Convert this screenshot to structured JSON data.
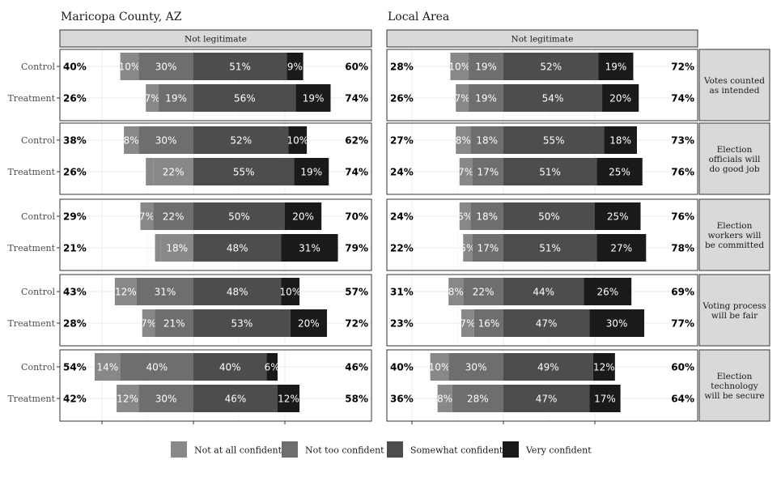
{
  "chart_data": {
    "type": "bar",
    "orientation": "horizontal-diverging",
    "stacked": true,
    "strip_label": "Not legitimate",
    "panels": [
      {
        "title": "Maricopa County, AZ"
      },
      {
        "title": "Local Area"
      }
    ],
    "groups": [
      "Control",
      "Treatment"
    ],
    "legend": [
      {
        "label": "Not at all confident",
        "color": "#888888"
      },
      {
        "label": "Not too confident",
        "color": "#6e6e6e"
      },
      {
        "label": "Somewhat confident",
        "color": "#4d4d4d"
      },
      {
        "label": "Very confident",
        "color": "#1a1a1a"
      }
    ],
    "legend_position": "bottom",
    "xlim": [
      -60,
      60
    ],
    "grid": true,
    "facets": [
      {
        "label": "Votes counted as intended",
        "label_lines": [
          "Votes counted",
          "as intended"
        ],
        "panels": [
          [
            {
              "group": "Control",
              "left": "40%",
              "right": "60%",
              "segments": [
                {
                  "value": 0,
                  "label": ""
                },
                {
                  "value": 10,
                  "label": "10%"
                },
                {
                  "value": 30,
                  "label": "30%"
                },
                {
                  "value": 51,
                  "label": "51%"
                },
                {
                  "value": 9,
                  "label": "9%"
                }
              ]
            },
            {
              "group": "Treatment",
              "left": "26%",
              "right": "74%",
              "segments": [
                {
                  "value": 0,
                  "label": ""
                },
                {
                  "value": 7,
                  "label": "7%"
                },
                {
                  "value": 19,
                  "label": "19%"
                },
                {
                  "value": 56,
                  "label": "56%"
                },
                {
                  "value": 19,
                  "label": "19%"
                }
              ]
            }
          ],
          [
            {
              "group": "Control",
              "left": "28%",
              "right": "72%",
              "segments": [
                {
                  "value": 0,
                  "label": ""
                },
                {
                  "value": 10,
                  "label": "10%"
                },
                {
                  "value": 19,
                  "label": "19%"
                },
                {
                  "value": 52,
                  "label": "52%"
                },
                {
                  "value": 19,
                  "label": "19%"
                }
              ]
            },
            {
              "group": "Treatment",
              "left": "26%",
              "right": "74%",
              "segments": [
                {
                  "value": 0,
                  "label": ""
                },
                {
                  "value": 7,
                  "label": "7%"
                },
                {
                  "value": 19,
                  "label": "19%"
                },
                {
                  "value": 54,
                  "label": "54%"
                },
                {
                  "value": 20,
                  "label": "20%"
                }
              ]
            }
          ]
        ]
      },
      {
        "label": "Election officials will do good job",
        "label_lines": [
          "Election",
          "officials will",
          "do good job"
        ],
        "panels": [
          [
            {
              "group": "Control",
              "left": "38%",
              "right": "62%",
              "segments": [
                {
                  "value": 0,
                  "label": ""
                },
                {
                  "value": 8,
                  "label": "8%"
                },
                {
                  "value": 30,
                  "label": "30%"
                },
                {
                  "value": 52,
                  "label": "52%"
                },
                {
                  "value": 10,
                  "label": "10%"
                }
              ]
            },
            {
              "group": "Treatment",
              "left": "26%",
              "right": "74%",
              "segments": [
                {
                  "value": 4,
                  "label": ""
                },
                {
                  "value": 22,
                  "label": "22%"
                },
                {
                  "value": 0,
                  "label": ""
                },
                {
                  "value": 55,
                  "label": "55%"
                },
                {
                  "value": 19,
                  "label": "19%"
                }
              ]
            }
          ],
          [
            {
              "group": "Control",
              "left": "27%",
              "right": "73%",
              "segments": [
                {
                  "value": 0,
                  "label": ""
                },
                {
                  "value": 8,
                  "label": "8%"
                },
                {
                  "value": 18,
                  "label": "18%"
                },
                {
                  "value": 55,
                  "label": "55%"
                },
                {
                  "value": 18,
                  "label": "18%"
                }
              ]
            },
            {
              "group": "Treatment",
              "left": "24%",
              "right": "76%",
              "segments": [
                {
                  "value": 0,
                  "label": ""
                },
                {
                  "value": 7,
                  "label": "7%"
                },
                {
                  "value": 17,
                  "label": "17%"
                },
                {
                  "value": 51,
                  "label": "51%"
                },
                {
                  "value": 25,
                  "label": "25%"
                }
              ]
            }
          ]
        ]
      },
      {
        "label": "Election workers will be committed",
        "label_lines": [
          "Election",
          "workers will",
          "be committed"
        ],
        "panels": [
          [
            {
              "group": "Control",
              "left": "29%",
              "right": "70%",
              "segments": [
                {
                  "value": 0,
                  "label": ""
                },
                {
                  "value": 7,
                  "label": "7%"
                },
                {
                  "value": 22,
                  "label": "22%"
                },
                {
                  "value": 50,
                  "label": "50%"
                },
                {
                  "value": 20,
                  "label": "20%"
                }
              ]
            },
            {
              "group": "Treatment",
              "left": "21%",
              "right": "79%",
              "segments": [
                {
                  "value": 3,
                  "label": ""
                },
                {
                  "value": 18,
                  "label": "18%"
                },
                {
                  "value": 0,
                  "label": ""
                },
                {
                  "value": 48,
                  "label": "48%"
                },
                {
                  "value": 31,
                  "label": "31%"
                }
              ]
            }
          ],
          [
            {
              "group": "Control",
              "left": "24%",
              "right": "76%",
              "segments": [
                {
                  "value": 0,
                  "label": ""
                },
                {
                  "value": 6,
                  "label": "6%"
                },
                {
                  "value": 18,
                  "label": "18%"
                },
                {
                  "value": 50,
                  "label": "50%"
                },
                {
                  "value": 25,
                  "label": "25%"
                }
              ]
            },
            {
              "group": "Treatment",
              "left": "22%",
              "right": "78%",
              "segments": [
                {
                  "value": 0,
                  "label": ""
                },
                {
                  "value": 5,
                  "label": "5%"
                },
                {
                  "value": 17,
                  "label": "17%"
                },
                {
                  "value": 51,
                  "label": "51%"
                },
                {
                  "value": 27,
                  "label": "27%"
                }
              ]
            }
          ]
        ]
      },
      {
        "label": "Voting process will be fair",
        "label_lines": [
          "Voting process",
          "will be fair"
        ],
        "panels": [
          [
            {
              "group": "Control",
              "left": "43%",
              "right": "57%",
              "segments": [
                {
                  "value": 0,
                  "label": ""
                },
                {
                  "value": 12,
                  "label": "12%"
                },
                {
                  "value": 31,
                  "label": "31%"
                },
                {
                  "value": 48,
                  "label": "48%"
                },
                {
                  "value": 10,
                  "label": "10%"
                }
              ]
            },
            {
              "group": "Treatment",
              "left": "28%",
              "right": "72%",
              "segments": [
                {
                  "value": 0,
                  "label": ""
                },
                {
                  "value": 7,
                  "label": "7%"
                },
                {
                  "value": 21,
                  "label": "21%"
                },
                {
                  "value": 53,
                  "label": "53%"
                },
                {
                  "value": 20,
                  "label": "20%"
                }
              ]
            }
          ],
          [
            {
              "group": "Control",
              "left": "31%",
              "right": "69%",
              "segments": [
                {
                  "value": 0,
                  "label": ""
                },
                {
                  "value": 8,
                  "label": "8%"
                },
                {
                  "value": 22,
                  "label": "22%"
                },
                {
                  "value": 44,
                  "label": "44%"
                },
                {
                  "value": 26,
                  "label": "26%"
                }
              ]
            },
            {
              "group": "Treatment",
              "left": "23%",
              "right": "77%",
              "segments": [
                {
                  "value": 0,
                  "label": ""
                },
                {
                  "value": 7,
                  "label": "7%"
                },
                {
                  "value": 16,
                  "label": "16%"
                },
                {
                  "value": 47,
                  "label": "47%"
                },
                {
                  "value": 30,
                  "label": "30%"
                }
              ]
            }
          ]
        ]
      },
      {
        "label": "Election technology will be secure",
        "label_lines": [
          "Election",
          "technology",
          "will be secure"
        ],
        "panels": [
          [
            {
              "group": "Control",
              "left": "54%",
              "right": "46%",
              "segments": [
                {
                  "value": 0,
                  "label": ""
                },
                {
                  "value": 14,
                  "label": "14%"
                },
                {
                  "value": 40,
                  "label": "40%"
                },
                {
                  "value": 40,
                  "label": "40%"
                },
                {
                  "value": 6,
                  "label": "6%"
                }
              ]
            },
            {
              "group": "Treatment",
              "left": "42%",
              "right": "58%",
              "segments": [
                {
                  "value": 0,
                  "label": ""
                },
                {
                  "value": 12,
                  "label": "12%"
                },
                {
                  "value": 30,
                  "label": "30%"
                },
                {
                  "value": 46,
                  "label": "46%"
                },
                {
                  "value": 12,
                  "label": "12%"
                }
              ]
            }
          ],
          [
            {
              "group": "Control",
              "left": "40%",
              "right": "60%",
              "segments": [
                {
                  "value": 0,
                  "label": ""
                },
                {
                  "value": 10,
                  "label": "10%"
                },
                {
                  "value": 30,
                  "label": "30%"
                },
                {
                  "value": 49,
                  "label": "49%"
                },
                {
                  "value": 12,
                  "label": "12%"
                }
              ]
            },
            {
              "group": "Treatment",
              "left": "36%",
              "right": "64%",
              "segments": [
                {
                  "value": 0,
                  "label": ""
                },
                {
                  "value": 8,
                  "label": "8%"
                },
                {
                  "value": 28,
                  "label": "28%"
                },
                {
                  "value": 47,
                  "label": "47%"
                },
                {
                  "value": 17,
                  "label": "17%"
                }
              ]
            }
          ]
        ]
      }
    ]
  }
}
